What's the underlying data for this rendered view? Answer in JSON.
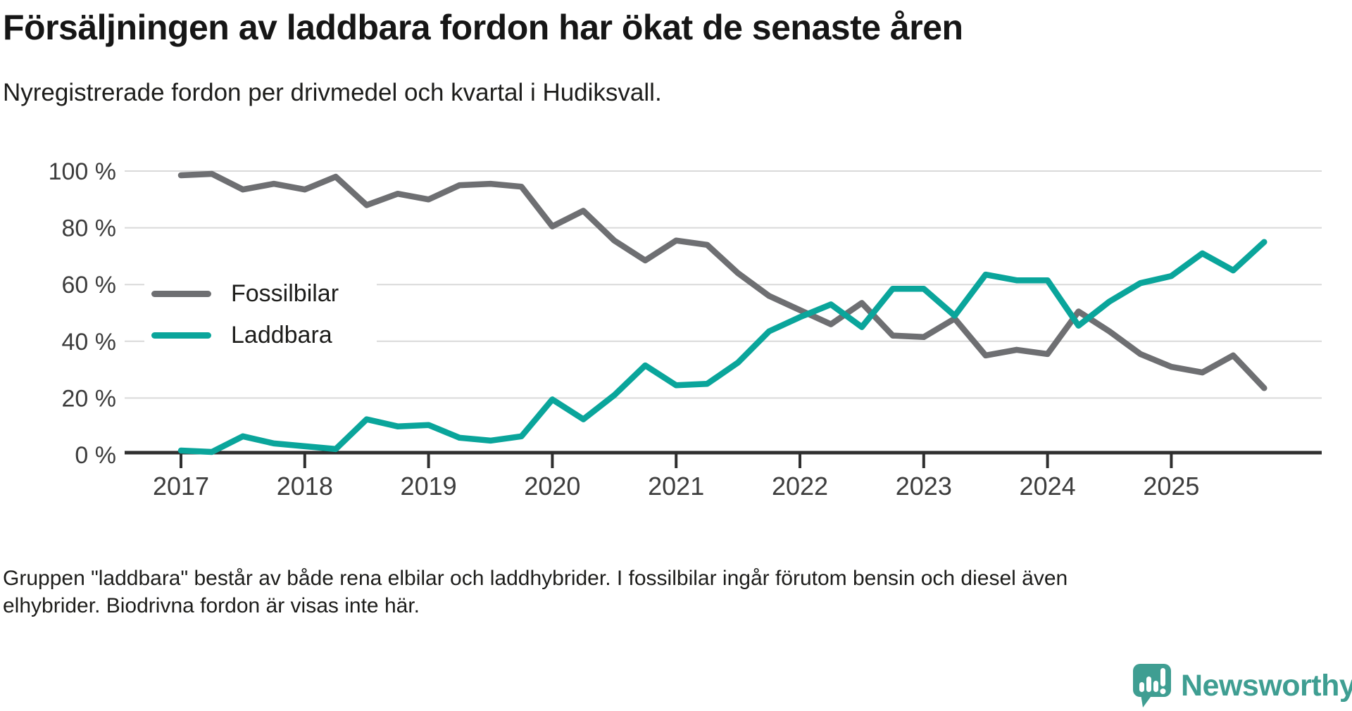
{
  "header": {
    "title": "Försäljningen av laddbara fordon har ökat de senaste åren",
    "subtitle": "Nyregistrerade fordon per drivmedel och kvartal i Hudiksvall."
  },
  "footer": {
    "note_line1": "Gruppen \"laddbara\" består av både rena elbilar och laddhybrider. I fossilbilar ingår förutom bensin och diesel även",
    "note_line2": "elhybrider. Biodrivna fordon är visas inte här."
  },
  "branding": {
    "name": "Newsworthy",
    "color": "#3f9e92"
  },
  "chart_data": {
    "type": "line",
    "title": "Försäljningen av laddbara fordon har ökat de senaste åren",
    "subtitle": "Nyregistrerade fordon per drivmedel och kvartal i Hudiksvall.",
    "xlabel": "",
    "ylabel": "",
    "ylim": [
      0,
      100
    ],
    "grid": true,
    "grid_color": "#d9d9d9",
    "axis_color": "#2f2f2f",
    "tick_label_color": "#3d3d3d",
    "legend_position": "inside-left",
    "x_tick_labels": [
      "2017",
      "2018",
      "2019",
      "2020",
      "2021",
      "2022",
      "2023",
      "2024",
      "2025"
    ],
    "y_ticks": [
      {
        "value": 0,
        "label": "0 %"
      },
      {
        "value": 20,
        "label": "20 %"
      },
      {
        "value": 40,
        "label": "40 %"
      },
      {
        "value": 60,
        "label": "60 %"
      },
      {
        "value": 80,
        "label": "80 %"
      },
      {
        "value": 100,
        "label": "100 %"
      }
    ],
    "categories": [
      "2017 Q1",
      "2017 Q2",
      "2017 Q3",
      "2017 Q4",
      "2018 Q1",
      "2018 Q2",
      "2018 Q3",
      "2018 Q4",
      "2019 Q1",
      "2019 Q2",
      "2019 Q3",
      "2019 Q4",
      "2020 Q1",
      "2020 Q2",
      "2020 Q3",
      "2020 Q4",
      "2021 Q1",
      "2021 Q2",
      "2021 Q3",
      "2021 Q4",
      "2022 Q1",
      "2022 Q2",
      "2022 Q3",
      "2022 Q4",
      "2023 Q1",
      "2023 Q2",
      "2023 Q3",
      "2023 Q4",
      "2024 Q1",
      "2024 Q2",
      "2024 Q3",
      "2024 Q4",
      "2025 Q1",
      "2025 Q2",
      "2025 Q3",
      "2025 Q4"
    ],
    "series": [
      {
        "name": "Fossilbilar",
        "color": "#6e6f72",
        "values": [
          98.5,
          99,
          93.5,
          95.5,
          93.5,
          98,
          88,
          92,
          90,
          95,
          95.5,
          94.5,
          80.5,
          86,
          75.5,
          68.5,
          75.5,
          74,
          64,
          56,
          51,
          46,
          53.5,
          42,
          41.5,
          48,
          35,
          37,
          35.5,
          50.5,
          43.5,
          35.5,
          31,
          29,
          35,
          23.5
        ]
      },
      {
        "name": "Laddbara",
        "color": "#0aa59b",
        "values": [
          1.5,
          1,
          6.5,
          4,
          3,
          2,
          12.5,
          10,
          10.5,
          6,
          5,
          6.5,
          19.5,
          12.5,
          21,
          31.5,
          24.5,
          25,
          32.5,
          43.5,
          48.5,
          53,
          45,
          58.5,
          58.5,
          49,
          63.5,
          61.5,
          61.5,
          45.5,
          54,
          60.5,
          63,
          71,
          65,
          75
        ]
      }
    ]
  }
}
